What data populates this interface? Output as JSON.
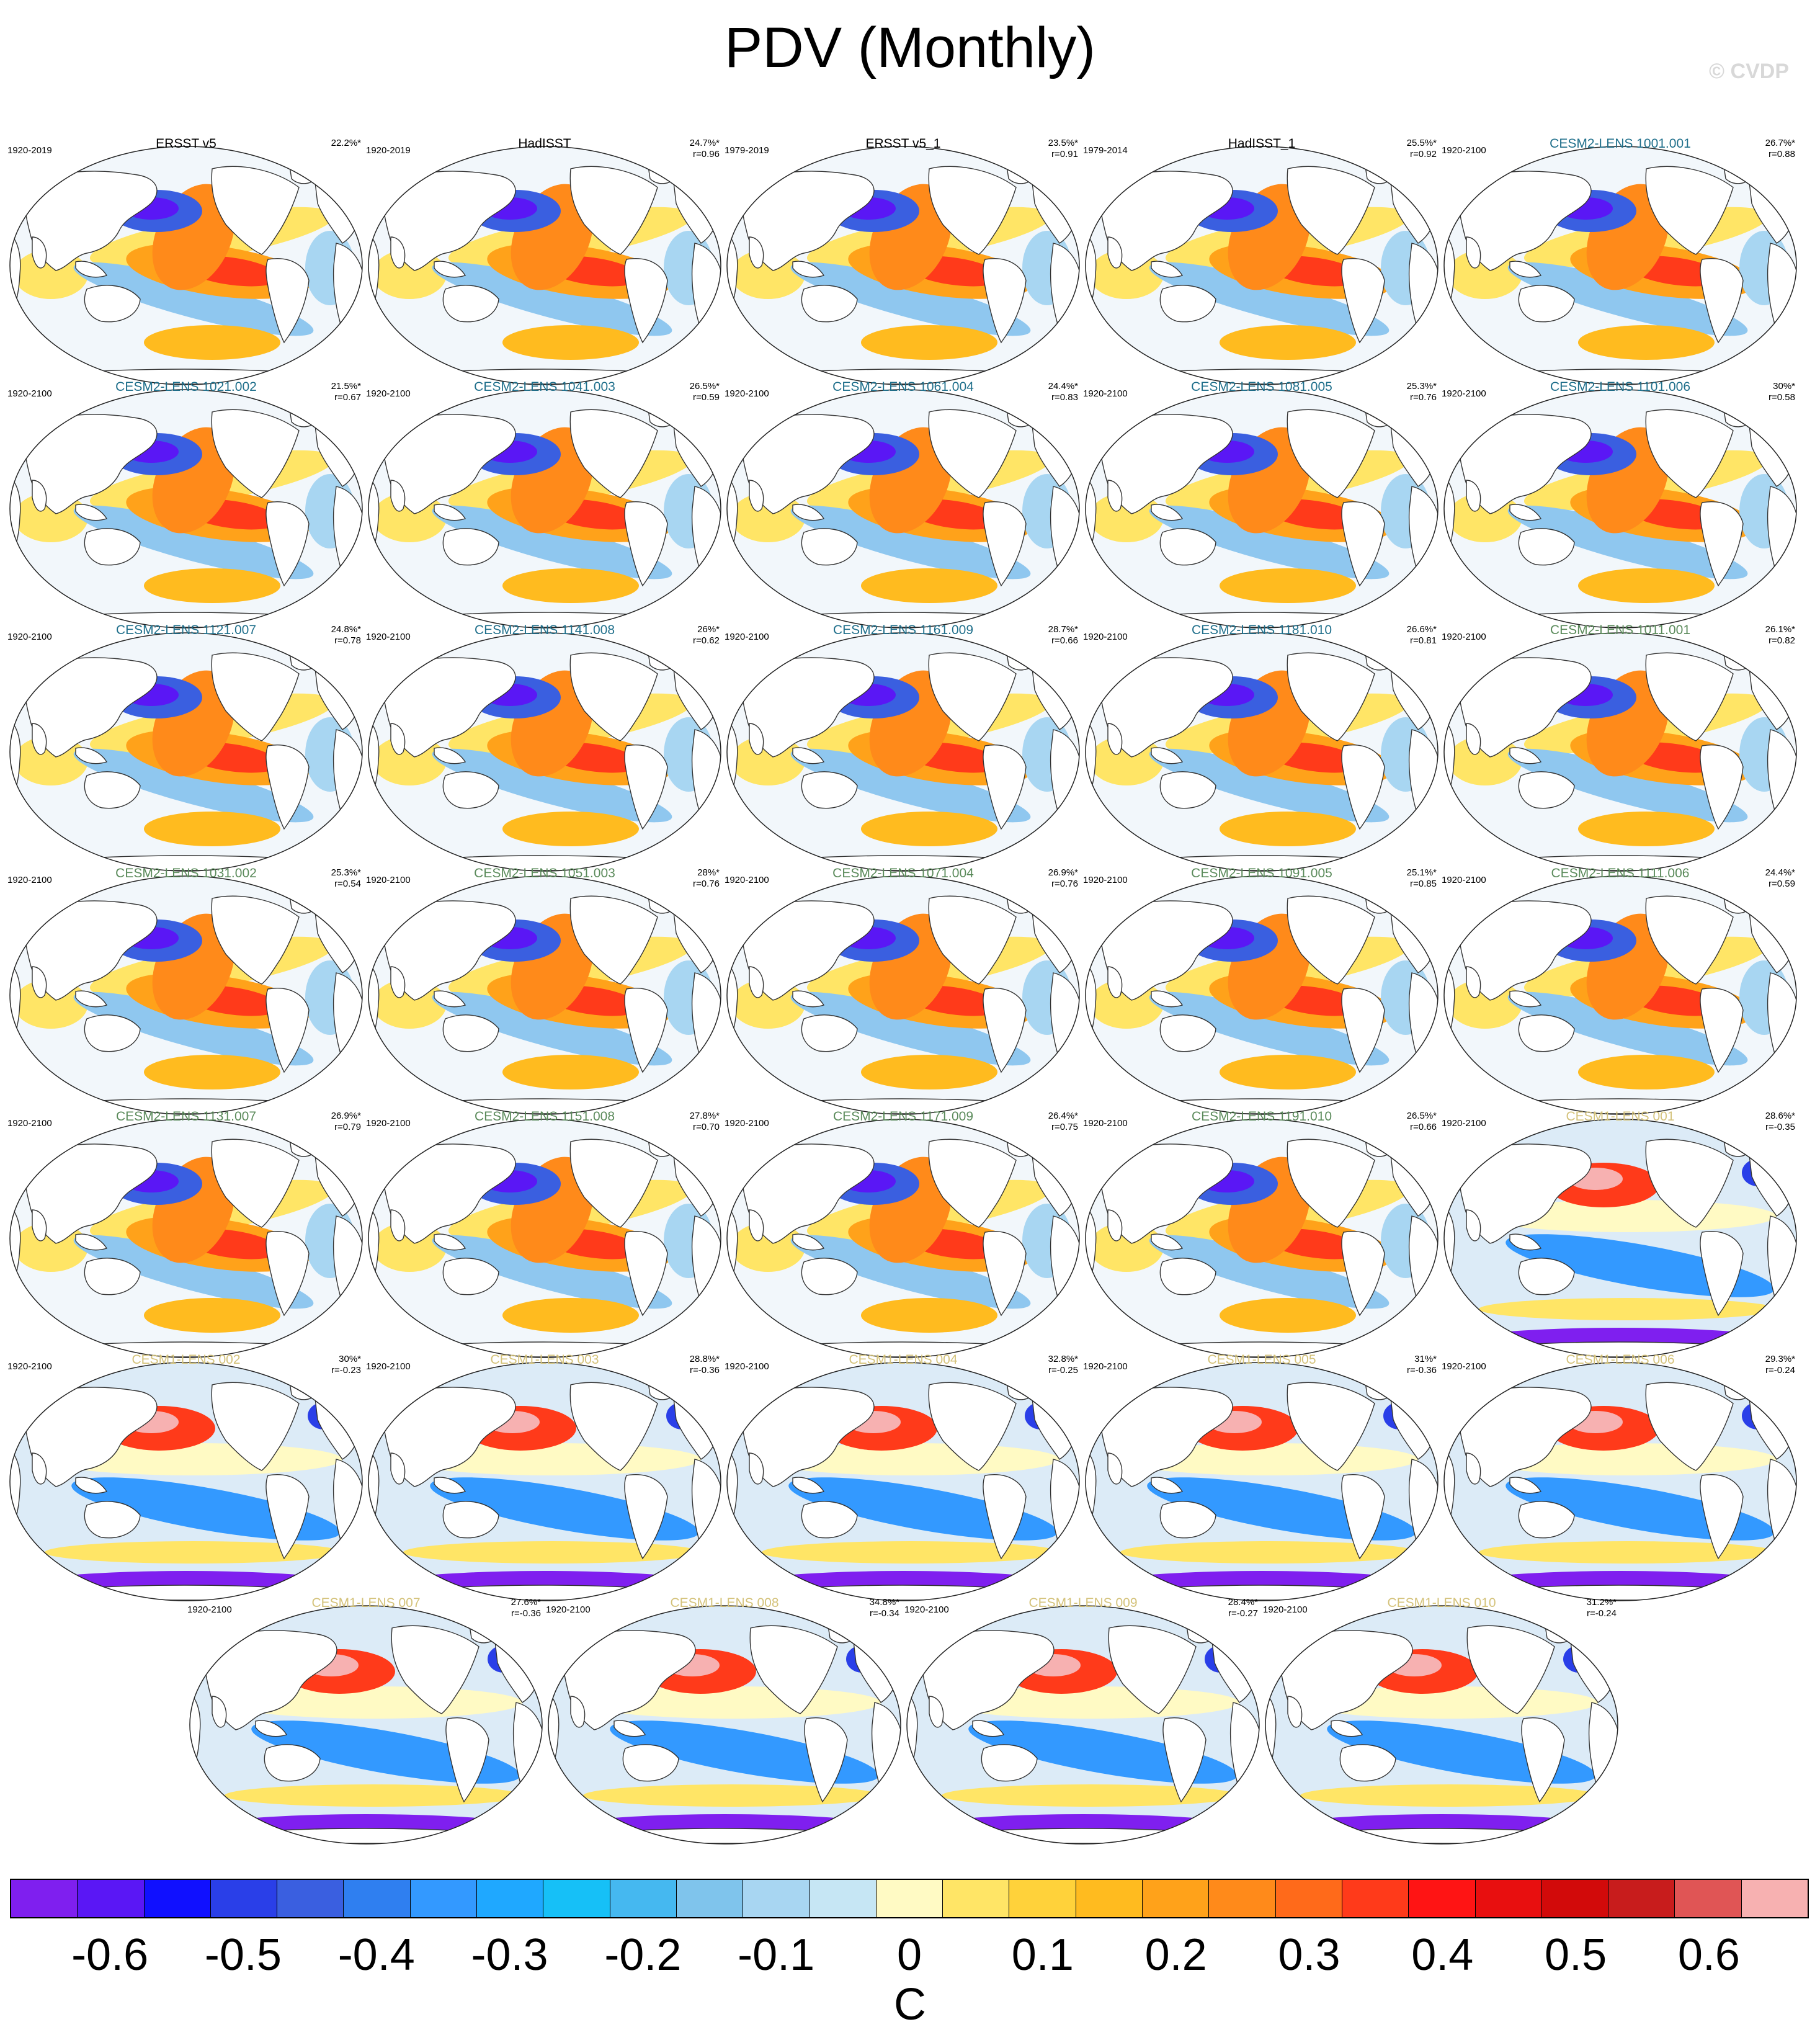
{
  "title": "PDV (Monthly)",
  "copyright": "© CVDP",
  "units": "C",
  "colors": {
    "obs_title": "#000000",
    "cesm2_a_title": "#1f6f8b",
    "cesm2_b_title": "#5a8a5a",
    "cesm1_title": "#d4c27a"
  },
  "colorbar": {
    "colors": [
      "#7f1fef",
      "#5a17f5",
      "#1010ff",
      "#2a3fe8",
      "#3a5fe0",
      "#2f7ff0",
      "#3399ff",
      "#1fa8ff",
      "#16c0f7",
      "#45b8f0",
      "#7fc4ec",
      "#a8d6f2",
      "#c6e6f4",
      "#fffac4",
      "#ffe566",
      "#ffd23a",
      "#ffbb1f",
      "#ffa21a",
      "#ff8a1a",
      "#ff6a1a",
      "#ff3a1a",
      "#ff1414",
      "#e80f0f",
      "#d20a0a",
      "#c81c1c",
      "#e05555",
      "#f7b1b1"
    ],
    "tick_labels": [
      "-0.6",
      "-0.5",
      "-0.4",
      "-0.3",
      "-0.2",
      "-0.1",
      "0",
      "0.1",
      "0.2",
      "0.3",
      "0.4",
      "0.5",
      "0.6"
    ]
  },
  "panels": [
    {
      "title": "ERSST v5",
      "range": "1920-2019",
      "pct": "22.2%*",
      "r": "",
      "group": "obs",
      "style": "pdv"
    },
    {
      "title": "HadISST",
      "range": "1920-2019",
      "pct": "24.7%*",
      "r": "r=0.96",
      "group": "obs",
      "style": "pdv"
    },
    {
      "title": "ERSST v5_1",
      "range": "1979-2019",
      "pct": "23.5%*",
      "r": "r=0.91",
      "group": "obs",
      "style": "pdv"
    },
    {
      "title": "HadISST_1",
      "range": "1979-2014",
      "pct": "25.5%*",
      "r": "r=0.92",
      "group": "obs",
      "style": "pdv"
    },
    {
      "title": "CESM2-LENS 1001.001",
      "range": "1920-2100",
      "pct": "26.7%*",
      "r": "r=0.88",
      "group": "cesm2_a",
      "style": "pdv"
    },
    {
      "title": "CESM2-LENS 1021.002",
      "range": "1920-2100",
      "pct": "21.5%*",
      "r": "r=0.67",
      "group": "cesm2_a",
      "style": "pdv"
    },
    {
      "title": "CESM2-LENS 1041.003",
      "range": "1920-2100",
      "pct": "26.5%*",
      "r": "r=0.59",
      "group": "cesm2_a",
      "style": "pdv"
    },
    {
      "title": "CESM2-LENS 1061.004",
      "range": "1920-2100",
      "pct": "24.4%*",
      "r": "r=0.83",
      "group": "cesm2_a",
      "style": "pdv"
    },
    {
      "title": "CESM2-LENS 1081.005",
      "range": "1920-2100",
      "pct": "25.3%*",
      "r": "r=0.76",
      "group": "cesm2_a",
      "style": "pdv"
    },
    {
      "title": "CESM2-LENS 1101.006",
      "range": "1920-2100",
      "pct": "30%*",
      "r": "r=0.58",
      "group": "cesm2_a",
      "style": "pdv"
    },
    {
      "title": "CESM2-LENS 1121.007",
      "range": "1920-2100",
      "pct": "24.8%*",
      "r": "r=0.78",
      "group": "cesm2_a",
      "style": "pdv"
    },
    {
      "title": "CESM2-LENS 1141.008",
      "range": "1920-2100",
      "pct": "26%*",
      "r": "r=0.62",
      "group": "cesm2_a",
      "style": "pdv"
    },
    {
      "title": "CESM2-LENS 1161.009",
      "range": "1920-2100",
      "pct": "28.7%*",
      "r": "r=0.66",
      "group": "cesm2_a",
      "style": "pdv"
    },
    {
      "title": "CESM2-LENS 1181.010",
      "range": "1920-2100",
      "pct": "26.6%*",
      "r": "r=0.81",
      "group": "cesm2_a",
      "style": "pdv"
    },
    {
      "title": "CESM2-LENS 1011.001",
      "range": "1920-2100",
      "pct": "26.1%*",
      "r": "r=0.82",
      "group": "cesm2_b",
      "style": "pdv"
    },
    {
      "title": "CESM2-LENS 1031.002",
      "range": "1920-2100",
      "pct": "25.3%*",
      "r": "r=0.54",
      "group": "cesm2_b",
      "style": "pdv"
    },
    {
      "title": "CESM2-LENS 1051.003",
      "range": "1920-2100",
      "pct": "28%*",
      "r": "r=0.76",
      "group": "cesm2_b",
      "style": "pdv"
    },
    {
      "title": "CESM2-LENS 1071.004",
      "range": "1920-2100",
      "pct": "26.9%*",
      "r": "r=0.76",
      "group": "cesm2_b",
      "style": "pdv"
    },
    {
      "title": "CESM2-LENS 1091.005",
      "range": "1920-2100",
      "pct": "25.1%*",
      "r": "r=0.85",
      "group": "cesm2_b",
      "style": "pdv"
    },
    {
      "title": "CESM2-LENS 1111.006",
      "range": "1920-2100",
      "pct": "24.4%*",
      "r": "r=0.59",
      "group": "cesm2_b",
      "style": "pdv"
    },
    {
      "title": "CESM2-LENS 1131.007",
      "range": "1920-2100",
      "pct": "26.9%*",
      "r": "r=0.79",
      "group": "cesm2_b",
      "style": "pdv"
    },
    {
      "title": "CESM2-LENS 1151.008",
      "range": "1920-2100",
      "pct": "27.8%*",
      "r": "r=0.70",
      "group": "cesm2_b",
      "style": "pdv"
    },
    {
      "title": "CESM2-LENS 1171.009",
      "range": "1920-2100",
      "pct": "26.4%*",
      "r": "r=0.75",
      "group": "cesm2_b",
      "style": "pdv"
    },
    {
      "title": "CESM2-LENS 1191.010",
      "range": "1920-2100",
      "pct": "26.5%*",
      "r": "r=0.66",
      "group": "cesm2_b",
      "style": "pdv"
    },
    {
      "title": "CESM1-LENS 001",
      "range": "1920-2100",
      "pct": "28.6%*",
      "r": "r=-0.35",
      "group": "cesm1",
      "style": "inv"
    },
    {
      "title": "CESM1-LENS 002",
      "range": "1920-2100",
      "pct": "30%*",
      "r": "r=-0.23",
      "group": "cesm1",
      "style": "inv"
    },
    {
      "title": "CESM1-LENS 003",
      "range": "1920-2100",
      "pct": "28.8%*",
      "r": "r=-0.36",
      "group": "cesm1",
      "style": "inv"
    },
    {
      "title": "CESM1-LENS 004",
      "range": "1920-2100",
      "pct": "32.8%*",
      "r": "r=-0.25",
      "group": "cesm1",
      "style": "inv"
    },
    {
      "title": "CESM1-LENS 005",
      "range": "1920-2100",
      "pct": "31%*",
      "r": "r=-0.36",
      "group": "cesm1",
      "style": "inv"
    },
    {
      "title": "CESM1-LENS 006",
      "range": "1920-2100",
      "pct": "29.3%*",
      "r": "r=-0.24",
      "group": "cesm1",
      "style": "inv"
    },
    {
      "title": "CESM1-LENS 007",
      "range": "1920-2100",
      "pct": "27.6%*",
      "r": "r=-0.36",
      "group": "cesm1",
      "style": "inv"
    },
    {
      "title": "CESM1-LENS 008",
      "range": "1920-2100",
      "pct": "34.8%*",
      "r": "r=-0.34",
      "group": "cesm1",
      "style": "inv"
    },
    {
      "title": "CESM1-LENS 009",
      "range": "1920-2100",
      "pct": "28.4%*",
      "r": "r=-0.27",
      "group": "cesm1",
      "style": "inv"
    },
    {
      "title": "CESM1-LENS 010",
      "range": "1920-2100",
      "pct": "31.2%*",
      "r": "r=-0.24",
      "group": "cesm1",
      "style": "inv"
    }
  ]
}
